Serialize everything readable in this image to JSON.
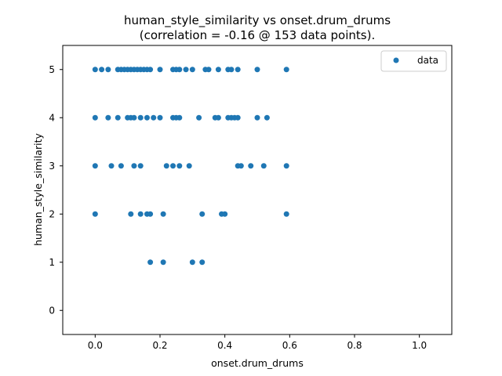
{
  "chart_data": {
    "type": "scatter",
    "title_line1": "human_style_similarity vs onset.drum_drums",
    "title_line2": "(correlation = -0.16 @ 153 data points).",
    "xlabel": "onset.drum_drums",
    "ylabel": "human_style_similarity",
    "xlim": [
      -0.1,
      1.1
    ],
    "ylim": [
      -0.5,
      5.5
    ],
    "xticks": [
      0.0,
      0.2,
      0.4,
      0.6,
      0.8,
      1.0
    ],
    "xtick_labels": [
      "0.0",
      "0.2",
      "0.4",
      "0.6",
      "0.8",
      "1.0"
    ],
    "yticks": [
      0,
      1,
      2,
      3,
      4,
      5
    ],
    "ytick_labels": [
      "0",
      "1",
      "2",
      "3",
      "4",
      "5"
    ],
    "grid": false,
    "legend": {
      "placement": "top-right",
      "entries": [
        "data"
      ]
    },
    "colors": {
      "marker": "#1f77b4"
    },
    "series": [
      {
        "name": "data",
        "points": [
          [
            0.0,
            5
          ],
          [
            0.02,
            5
          ],
          [
            0.04,
            5
          ],
          [
            0.07,
            5
          ],
          [
            0.08,
            5
          ],
          [
            0.09,
            5
          ],
          [
            0.1,
            5
          ],
          [
            0.11,
            5
          ],
          [
            0.12,
            5
          ],
          [
            0.13,
            5
          ],
          [
            0.14,
            5
          ],
          [
            0.15,
            5
          ],
          [
            0.16,
            5
          ],
          [
            0.17,
            5
          ],
          [
            0.2,
            5
          ],
          [
            0.24,
            5
          ],
          [
            0.25,
            5
          ],
          [
            0.26,
            5
          ],
          [
            0.28,
            5
          ],
          [
            0.3,
            5
          ],
          [
            0.34,
            5
          ],
          [
            0.35,
            5
          ],
          [
            0.38,
            5
          ],
          [
            0.41,
            5
          ],
          [
            0.42,
            5
          ],
          [
            0.44,
            5
          ],
          [
            0.5,
            5
          ],
          [
            0.59,
            5
          ],
          [
            0.0,
            4
          ],
          [
            0.04,
            4
          ],
          [
            0.07,
            4
          ],
          [
            0.1,
            4
          ],
          [
            0.11,
            4
          ],
          [
            0.12,
            4
          ],
          [
            0.14,
            4
          ],
          [
            0.16,
            4
          ],
          [
            0.18,
            4
          ],
          [
            0.2,
            4
          ],
          [
            0.24,
            4
          ],
          [
            0.25,
            4
          ],
          [
            0.26,
            4
          ],
          [
            0.32,
            4
          ],
          [
            0.37,
            4
          ],
          [
            0.38,
            4
          ],
          [
            0.41,
            4
          ],
          [
            0.42,
            4
          ],
          [
            0.43,
            4
          ],
          [
            0.44,
            4
          ],
          [
            0.5,
            4
          ],
          [
            0.53,
            4
          ],
          [
            0.0,
            3
          ],
          [
            0.05,
            3
          ],
          [
            0.08,
            3
          ],
          [
            0.12,
            3
          ],
          [
            0.14,
            3
          ],
          [
            0.22,
            3
          ],
          [
            0.24,
            3
          ],
          [
            0.26,
            3
          ],
          [
            0.29,
            3
          ],
          [
            0.44,
            3
          ],
          [
            0.45,
            3
          ],
          [
            0.48,
            3
          ],
          [
            0.52,
            3
          ],
          [
            0.59,
            3
          ],
          [
            0.0,
            2
          ],
          [
            0.11,
            2
          ],
          [
            0.14,
            2
          ],
          [
            0.16,
            2
          ],
          [
            0.17,
            2
          ],
          [
            0.21,
            2
          ],
          [
            0.33,
            2
          ],
          [
            0.39,
            2
          ],
          [
            0.4,
            2
          ],
          [
            0.59,
            2
          ],
          [
            0.17,
            1
          ],
          [
            0.21,
            1
          ],
          [
            0.3,
            1
          ],
          [
            0.33,
            1
          ]
        ]
      }
    ]
  }
}
